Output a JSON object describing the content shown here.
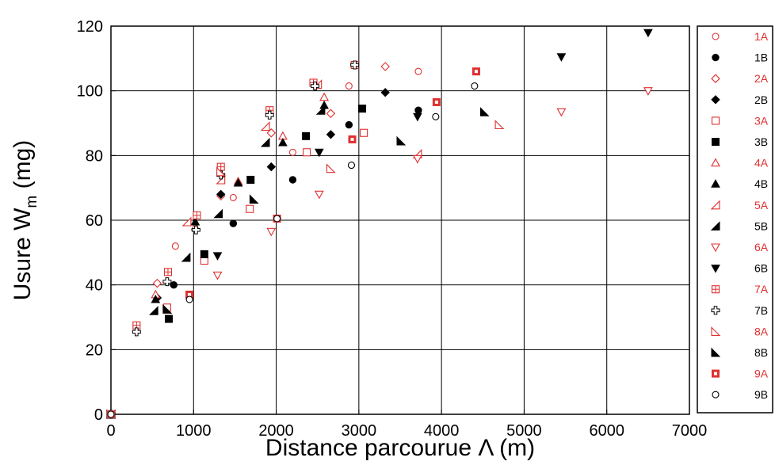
{
  "chart_data": {
    "type": "scatter",
    "xlabel": {
      "base": "Distance parcourue ",
      "symbol": "Λ",
      "unit": " (m)"
    },
    "ylabel": {
      "base": "Usure W",
      "subscript": "m",
      "unit": " (mg)"
    },
    "xlim": [
      0,
      7000
    ],
    "ylim": [
      0,
      120
    ],
    "xticks": [
      "0",
      "1000",
      "2000",
      "3000",
      "4000",
      "5000",
      "6000",
      "7000"
    ],
    "yticks": [
      "0",
      "20",
      "40",
      "60",
      "80",
      "100",
      "120"
    ],
    "grid": true,
    "legend_position": "right",
    "colors": {
      "A": "#e03030",
      "B": "#000000"
    },
    "series": [
      {
        "name": "1A",
        "marker": "circle-open",
        "color": "#e03030",
        "points": [
          [
            0,
            0
          ],
          [
            780,
            52
          ],
          [
            1480,
            67
          ],
          [
            2200,
            81
          ],
          [
            2880,
            101.5
          ],
          [
            3720,
            106
          ]
        ]
      },
      {
        "name": "1B",
        "marker": "circle-filled",
        "color": "#000000",
        "points": [
          [
            0,
            0
          ],
          [
            760,
            40
          ],
          [
            1480,
            59
          ],
          [
            2200,
            72.5
          ],
          [
            2880,
            89.5
          ],
          [
            3720,
            94
          ]
        ]
      },
      {
        "name": "2A",
        "marker": "diamond-open",
        "color": "#e03030",
        "points": [
          [
            0,
            0
          ],
          [
            560,
            40.5
          ],
          [
            1330,
            67.5
          ],
          [
            1940,
            87
          ],
          [
            2660,
            93
          ],
          [
            3320,
            107.5
          ]
        ]
      },
      {
        "name": "2B",
        "marker": "diamond-filled",
        "color": "#000000",
        "points": [
          [
            0,
            0
          ],
          [
            560,
            36
          ],
          [
            1330,
            68
          ],
          [
            1940,
            76.5
          ],
          [
            2660,
            86.5
          ],
          [
            3320,
            99.5
          ]
        ]
      },
      {
        "name": "3A",
        "marker": "square-open",
        "color": "#e03030",
        "points": [
          [
            0,
            0
          ],
          [
            680,
            33
          ],
          [
            1130,
            47.5
          ],
          [
            1680,
            63.5
          ],
          [
            2370,
            81
          ],
          [
            3060,
            87
          ]
        ]
      },
      {
        "name": "3B",
        "marker": "square-filled",
        "color": "#000000",
        "points": [
          [
            0,
            0
          ],
          [
            700,
            29.5
          ],
          [
            1130,
            49.5
          ],
          [
            1690,
            72.5
          ],
          [
            2360,
            86
          ],
          [
            3040,
            94.5
          ]
        ]
      },
      {
        "name": "4A",
        "marker": "triangle-up-open",
        "color": "#e03030",
        "points": [
          [
            0,
            0
          ],
          [
            540,
            37
          ],
          [
            1020,
            58
          ],
          [
            1540,
            72
          ],
          [
            2080,
            86
          ],
          [
            2580,
            98
          ]
        ]
      },
      {
        "name": "4B",
        "marker": "triangle-up-filled",
        "color": "#000000",
        "points": [
          [
            0,
            0
          ],
          [
            540,
            35.5
          ],
          [
            1020,
            59.5
          ],
          [
            1540,
            71.5
          ],
          [
            2080,
            84
          ],
          [
            2580,
            95.5
          ]
        ]
      },
      {
        "name": "5A",
        "marker": "triangle-left-open",
        "color": "#e03030",
        "points": [
          [
            0,
            0
          ],
          [
            920,
            59.5
          ],
          [
            1330,
            72.5
          ],
          [
            1870,
            89
          ],
          [
            2500,
            102
          ],
          [
            3710,
            80.5
          ]
        ]
      },
      {
        "name": "5B",
        "marker": "triangle-left-filled",
        "color": "#000000",
        "points": [
          [
            0,
            0
          ],
          [
            520,
            32
          ],
          [
            910,
            48.5
          ],
          [
            1300,
            62
          ],
          [
            1870,
            84
          ],
          [
            2540,
            94
          ]
        ]
      },
      {
        "name": "6A",
        "marker": "triangle-down-open",
        "color": "#e03030",
        "points": [
          [
            0,
            0
          ],
          [
            1290,
            43
          ],
          [
            1940,
            56.5
          ],
          [
            2520,
            68
          ],
          [
            3710,
            79
          ],
          [
            5450,
            93.5
          ],
          [
            6500,
            100
          ]
        ]
      },
      {
        "name": "6B",
        "marker": "triangle-down-filled",
        "color": "#000000",
        "points": [
          [
            0,
            0
          ],
          [
            1290,
            49
          ],
          [
            2520,
            81
          ],
          [
            3710,
            92
          ],
          [
            5450,
            110.5
          ],
          [
            6500,
            118
          ]
        ]
      },
      {
        "name": "7A",
        "marker": "square-plus",
        "color": "#e03030",
        "points": [
          [
            0,
            0
          ],
          [
            310,
            27.5
          ],
          [
            690,
            44
          ],
          [
            1040,
            61.5
          ],
          [
            1330,
            76.5
          ],
          [
            1920,
            94
          ],
          [
            2450,
            102.5
          ],
          [
            2950,
            108
          ]
        ]
      },
      {
        "name": "7B",
        "marker": "plus-cross",
        "color": "#000000",
        "points": [
          [
            0,
            0
          ],
          [
            310,
            25.5
          ],
          [
            680,
            41
          ],
          [
            1030,
            57
          ],
          [
            1330,
            74
          ],
          [
            1920,
            92.5
          ],
          [
            2470,
            101.5
          ],
          [
            2950,
            108
          ]
        ]
      },
      {
        "name": "8A",
        "marker": "triangle-corner-open",
        "color": "#e03030",
        "points": [
          [
            0,
            0
          ],
          [
            680,
            32.5
          ],
          [
            1330,
            75
          ],
          [
            2660,
            76
          ],
          [
            4700,
            89.5
          ]
        ]
      },
      {
        "name": "8B",
        "marker": "triangle-corner-filled",
        "color": "#000000",
        "points": [
          [
            0,
            0
          ],
          [
            680,
            32.5
          ],
          [
            1730,
            66.5
          ],
          [
            3510,
            84.5
          ],
          [
            4520,
            93.5
          ]
        ]
      },
      {
        "name": "9A",
        "marker": "square-dot",
        "color": "#e03030",
        "points": [
          [
            0,
            0
          ],
          [
            950,
            37
          ],
          [
            2010,
            60.5
          ],
          [
            2920,
            85
          ],
          [
            3940,
            96.5
          ],
          [
            4420,
            106
          ]
        ]
      },
      {
        "name": "9B",
        "marker": "circle-open",
        "color": "#000000",
        "points": [
          [
            0,
            0
          ],
          [
            950,
            35.5
          ],
          [
            2010,
            60.5
          ],
          [
            2910,
            77
          ],
          [
            3930,
            92
          ],
          [
            4400,
            101.5
          ]
        ]
      }
    ]
  }
}
